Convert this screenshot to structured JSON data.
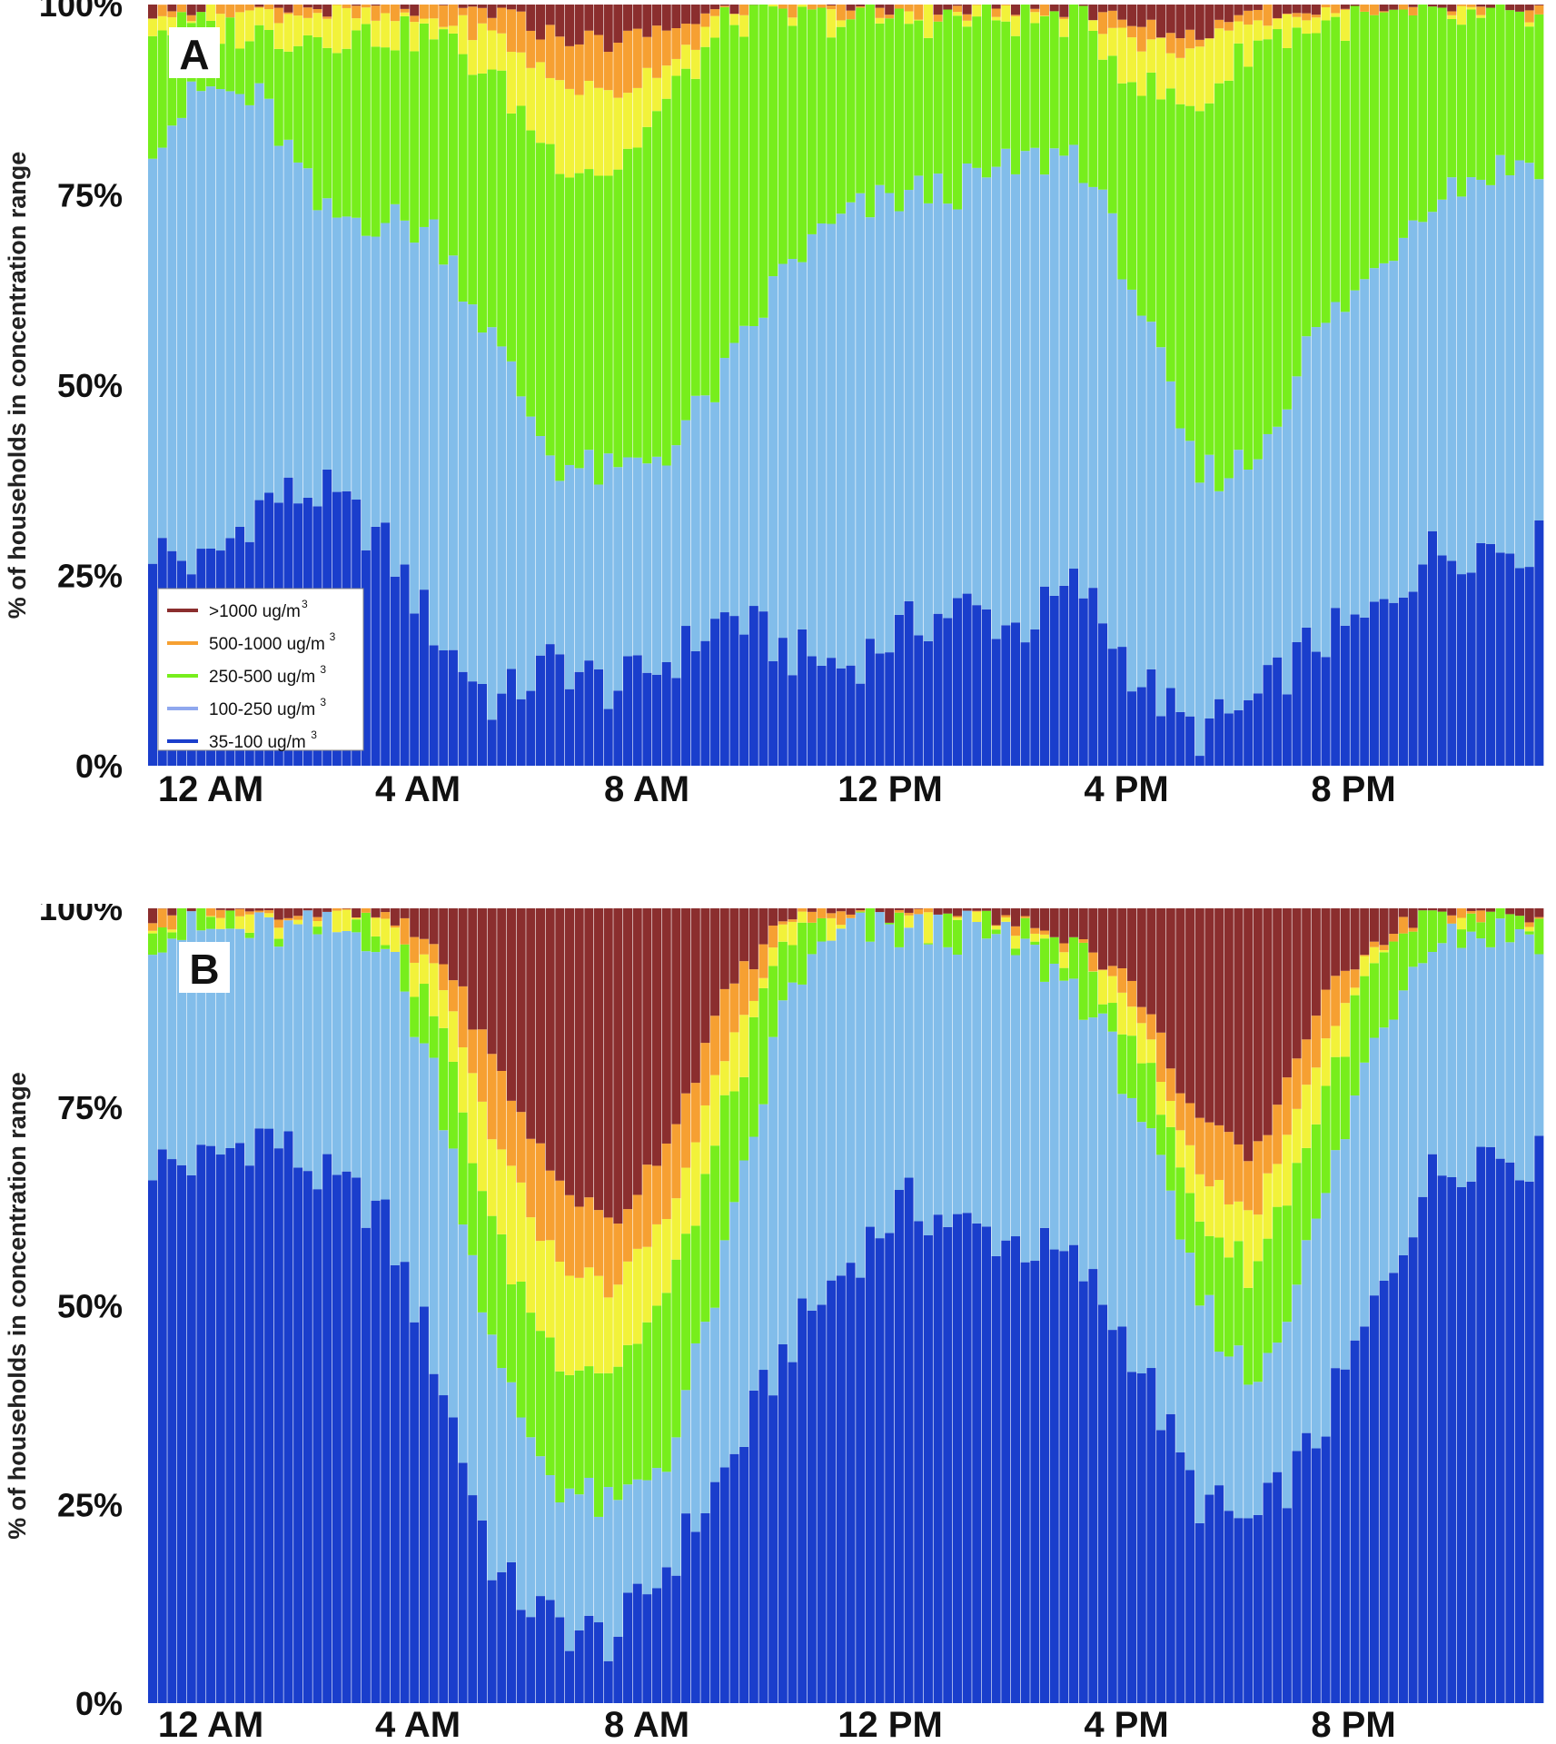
{
  "figure": {
    "background": "#ffffff"
  },
  "colors": {
    "c35_100": "#1a3ecc",
    "c100_250": "#82bdea",
    "c250_500": "#77ee1c",
    "c500_1000": "#f6a032",
    "c1000plus": "#8b2e2e",
    "yellow_band": "#f2f23a"
  },
  "legend": {
    "placement": "bottom-left of panel A",
    "entries": [
      {
        "label": ">1000 ug/m",
        "sup": "3",
        "color": "#8b2e2e",
        "icon": "line-swatch"
      },
      {
        "label": "500-1000 ug/m",
        "sup": "3",
        "color": "#f6a032",
        "icon": "line-swatch"
      },
      {
        "label": "250-500 ug/m",
        "sup": "3",
        "color": "#77ee1c",
        "icon": "line-swatch"
      },
      {
        "label": "100-250 ug/m",
        "sup": "3",
        "color": "#8fa8ee",
        "icon": "line-swatch"
      },
      {
        "label": "35-100 ug/m",
        "sup": "3",
        "color": "#1a3ecc",
        "icon": "line-swatch"
      }
    ]
  },
  "chart_data": [
    {
      "panel": "A",
      "type": "bar",
      "stacked": true,
      "normalized_percent": true,
      "ylabel": "% of households in concentration range",
      "yticks": [
        "0%",
        "25%",
        "50%",
        "75%",
        "100%"
      ],
      "xticks": [
        "12 AM",
        "4 AM",
        "8 AM",
        "12 PM",
        "4 PM",
        "8 PM"
      ],
      "ylim": [
        0,
        100
      ],
      "grid": false,
      "legend_placement": "bottom-left",
      "n_intervals": 144,
      "interval_minutes": 10,
      "cumulative_breakpoints_percent": {
        "hours": [
          0,
          1,
          2,
          3,
          4,
          5,
          6,
          7,
          8,
          9,
          10,
          11,
          12,
          13,
          14,
          15,
          16,
          17,
          18,
          19,
          20,
          21,
          22,
          23,
          24
        ],
        "top_35_100": [
          29,
          26,
          35,
          36,
          30,
          17,
          8,
          14,
          10,
          14,
          20,
          15,
          13,
          18,
          21,
          18,
          24,
          12,
          4,
          8,
          16,
          19,
          28,
          29,
          29
        ],
        "top_100_250": [
          82,
          89,
          87,
          72,
          72,
          70,
          55,
          40,
          38,
          42,
          52,
          66,
          72,
          75,
          76,
          79,
          81,
          62,
          38,
          40,
          56,
          64,
          75,
          78,
          80
        ],
        "top_250_500": [
          97,
          97,
          96,
          96,
          96,
          96,
          90,
          80,
          78,
          88,
          98,
          98,
          98,
          98,
          98,
          98,
          98,
          90,
          86,
          95,
          97,
          98,
          98,
          98,
          98
        ],
        "top_500_1000": [
          99,
          99,
          99,
          99,
          98,
          98,
          96,
          90,
          88,
          93,
          99,
          99,
          99,
          99,
          99,
          99,
          99,
          95,
          94,
          98,
          99,
          99,
          99,
          99,
          99
        ],
        "top_yellow": [
          99.5,
          99.5,
          99.5,
          99.5,
          99.5,
          99.5,
          99,
          96,
          95,
          97,
          99.5,
          99.5,
          99.5,
          99.5,
          99.5,
          99.5,
          99.5,
          97,
          96,
          99,
          99.5,
          99.5,
          99.5,
          99.5,
          99.5
        ]
      },
      "series": [
        {
          "name": "35-100 ug/m3",
          "color": "#1a3ecc"
        },
        {
          "name": "100-250 ug/m3",
          "color": "#82bdea"
        },
        {
          "name": "250-500 ug/m3",
          "color": "#77ee1c"
        },
        {
          "name": "500-1000 ug/m3",
          "color": "#f6a032"
        },
        {
          "name": ">1000 ug/m3",
          "color": "#8b2e2e"
        }
      ]
    },
    {
      "panel": "B",
      "type": "bar",
      "stacked": true,
      "normalized_percent": true,
      "ylabel": "% of households in concentration range",
      "yticks": [
        "0%",
        "25%",
        "50%",
        "75%",
        "100%"
      ],
      "xticks": [
        "12 AM",
        "4 AM",
        "8 AM",
        "12 PM",
        "4 PM",
        "8 PM"
      ],
      "ylim": [
        0,
        100
      ],
      "grid": false,
      "n_intervals": 144,
      "interval_minutes": 10,
      "cumulative_breakpoints_percent": {
        "hours": [
          0,
          1,
          2,
          3,
          4,
          5,
          6,
          7,
          8,
          9,
          10,
          11,
          12,
          13,
          14,
          15,
          16,
          17,
          18,
          19,
          20,
          21,
          22,
          23,
          24
        ],
        "top_35_100": [
          68,
          68,
          72,
          66,
          62,
          42,
          16,
          10,
          8,
          18,
          30,
          45,
          55,
          63,
          60,
          58,
          55,
          44,
          26,
          22,
          32,
          48,
          66,
          70,
          68
        ],
        "top_100_250": [
          97,
          97,
          97,
          97,
          97,
          78,
          42,
          28,
          24,
          32,
          58,
          90,
          97,
          97,
          97,
          95,
          90,
          76,
          52,
          40,
          58,
          82,
          97,
          97,
          97
        ],
        "top_250_500": [
          98,
          98,
          98,
          98,
          98,
          86,
          58,
          44,
          42,
          52,
          76,
          96,
          98,
          98,
          98,
          97,
          94,
          84,
          62,
          54,
          72,
          92,
          98,
          98,
          98
        ],
        "top_500_1000": [
          99,
          99,
          99,
          99,
          99,
          95,
          80,
          66,
          60,
          72,
          90,
          99,
          99,
          99,
          99,
          98,
          96,
          90,
          74,
          68,
          86,
          96,
          99,
          99,
          99
        ],
        "top_yellow": [
          98.5,
          98.5,
          98.5,
          98.5,
          98.5,
          91,
          70,
          56,
          52,
          62,
          84,
          98,
          98.5,
          98.5,
          98.5,
          97.5,
          95,
          87,
          68,
          61,
          80,
          94,
          98.5,
          98.5,
          98.5
        ]
      },
      "series": [
        {
          "name": "35-100 ug/m3",
          "color": "#1a3ecc"
        },
        {
          "name": "100-250 ug/m3",
          "color": "#82bdea"
        },
        {
          "name": "250-500 ug/m3",
          "color": "#77ee1c"
        },
        {
          "name": "500-1000 ug/m3",
          "color": "#f6a032"
        },
        {
          "name": ">1000 ug/m3",
          "color": "#8b2e2e"
        }
      ]
    }
  ]
}
